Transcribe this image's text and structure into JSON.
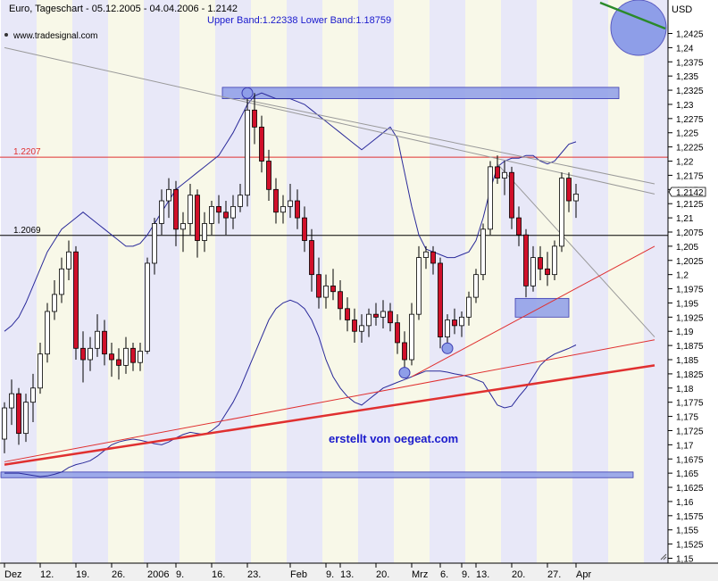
{
  "chart_data": {
    "type": "candlestick",
    "title": "Euro, Tageschart - 05.12.2005 - 04.04.2006 - 1.2142",
    "band_label": "Upper Band:1.22338 Lower Band:1.18759",
    "source": "www.tradesignal.com",
    "currency": "USD",
    "watermark": "erstellt von oegeat.com",
    "last_price": "1.2142",
    "ylim": [
      1.15,
      1.25
    ],
    "yticks": [
      "1,2425",
      "1,24",
      "1,2375",
      "1,235",
      "1,2325",
      "1,23",
      "1,2275",
      "1,225",
      "1,2225",
      "1,22",
      "1,2175",
      "1,215",
      "1,2125",
      "1,21",
      "1,2075",
      "1,205",
      "1,2025",
      "1,2",
      "1,1975",
      "1,195",
      "1,1925",
      "1,19",
      "1,1875",
      "1,185",
      "1,1825",
      "1,18",
      "1,1775",
      "1,175",
      "1,1725",
      "1,17",
      "1,1675",
      "1,165",
      "1,1625",
      "1,16",
      "1,1575",
      "1,155",
      "1,1525",
      "1,15"
    ],
    "ytick_values": [
      1.2425,
      1.24,
      1.2375,
      1.235,
      1.2325,
      1.23,
      1.2275,
      1.225,
      1.2225,
      1.22,
      1.2175,
      1.215,
      1.2125,
      1.21,
      1.2075,
      1.205,
      1.2025,
      1.2,
      1.1975,
      1.195,
      1.1925,
      1.19,
      1.1875,
      1.185,
      1.1825,
      1.18,
      1.1775,
      1.175,
      1.1725,
      1.17,
      1.1675,
      1.165,
      1.1625,
      1.16,
      1.1575,
      1.155,
      1.1525,
      1.15
    ],
    "xticks": [
      {
        "label": "Dez",
        "i": 0
      },
      {
        "label": "12.",
        "i": 5
      },
      {
        "label": "19.",
        "i": 10
      },
      {
        "label": "26.",
        "i": 15
      },
      {
        "label": "2006",
        "i": 20
      },
      {
        "label": "9.",
        "i": 24
      },
      {
        "label": "16.",
        "i": 29
      },
      {
        "label": "23.",
        "i": 34
      },
      {
        "label": "Feb",
        "i": 40
      },
      {
        "label": "9.",
        "i": 45
      },
      {
        "label": "13.",
        "i": 47
      },
      {
        "label": "20.",
        "i": 52
      },
      {
        "label": "Mrz",
        "i": 57
      },
      {
        "label": "6.",
        "i": 61
      },
      {
        "label": "9.",
        "i": 64
      },
      {
        "label": "13.",
        "i": 66
      },
      {
        "label": "20.",
        "i": 71
      },
      {
        "label": "27.",
        "i": 76
      },
      {
        "label": "Apr",
        "i": 80
      }
    ],
    "hlines": [
      {
        "label": "1.2207",
        "value": 1.2207,
        "color": "#e03030"
      },
      {
        "label": "1.2069",
        "value": 1.2069,
        "color": "#000000"
      }
    ],
    "candles": [
      [
        1.171,
        1.1775,
        1.1685,
        1.1765
      ],
      [
        1.1765,
        1.1815,
        1.1735,
        1.179
      ],
      [
        1.179,
        1.18,
        1.17,
        1.172
      ],
      [
        1.172,
        1.179,
        1.1705,
        1.1775
      ],
      [
        1.1775,
        1.1825,
        1.174,
        1.18
      ],
      [
        1.18,
        1.188,
        1.179,
        1.186
      ],
      [
        1.186,
        1.195,
        1.1845,
        1.1935
      ],
      [
        1.1935,
        1.199,
        1.192,
        1.1965
      ],
      [
        1.1965,
        1.203,
        1.195,
        1.201
      ],
      [
        1.201,
        1.206,
        1.199,
        1.204
      ],
      [
        1.204,
        1.205,
        1.185,
        1.187
      ],
      [
        1.187,
        1.19,
        1.181,
        1.185
      ],
      [
        1.185,
        1.189,
        1.183,
        1.187
      ],
      [
        1.187,
        1.193,
        1.1855,
        1.19
      ],
      [
        1.19,
        1.192,
        1.184,
        1.186
      ],
      [
        1.186,
        1.188,
        1.182,
        1.185
      ],
      [
        1.185,
        1.187,
        1.1815,
        1.184
      ],
      [
        1.184,
        1.189,
        1.1825,
        1.187
      ],
      [
        1.187,
        1.188,
        1.183,
        1.1845
      ],
      [
        1.1845,
        1.188,
        1.183,
        1.1865
      ],
      [
        1.1865,
        1.203,
        1.186,
        1.202
      ],
      [
        1.202,
        1.21,
        1.2,
        1.209
      ],
      [
        1.209,
        1.215,
        1.207,
        1.213
      ],
      [
        1.213,
        1.217,
        1.21,
        1.215
      ],
      [
        1.215,
        1.2165,
        1.205,
        1.208
      ],
      [
        1.208,
        1.211,
        1.204,
        1.209
      ],
      [
        1.209,
        1.216,
        1.207,
        1.214
      ],
      [
        1.214,
        1.215,
        1.203,
        1.206
      ],
      [
        1.206,
        1.211,
        1.204,
        1.209
      ],
      [
        1.209,
        1.213,
        1.207,
        1.212
      ],
      [
        1.212,
        1.214,
        1.209,
        1.211
      ],
      [
        1.211,
        1.213,
        1.207,
        1.21
      ],
      [
        1.21,
        1.214,
        1.208,
        1.212
      ],
      [
        1.212,
        1.216,
        1.211,
        1.214
      ],
      [
        1.214,
        1.231,
        1.212,
        1.229
      ],
      [
        1.229,
        1.232,
        1.223,
        1.226
      ],
      [
        1.226,
        1.228,
        1.218,
        1.22
      ],
      [
        1.22,
        1.222,
        1.213,
        1.215
      ],
      [
        1.215,
        1.217,
        1.209,
        1.211
      ],
      [
        1.211,
        1.214,
        1.209,
        1.212
      ],
      [
        1.212,
        1.216,
        1.21,
        1.213
      ],
      [
        1.213,
        1.215,
        1.208,
        1.21
      ],
      [
        1.21,
        1.212,
        1.204,
        1.206
      ],
      [
        1.206,
        1.208,
        1.197,
        1.2
      ],
      [
        1.2,
        1.203,
        1.194,
        1.196
      ],
      [
        1.196,
        1.2,
        1.194,
        1.198
      ],
      [
        1.198,
        1.201,
        1.1955,
        1.197
      ],
      [
        1.197,
        1.199,
        1.192,
        1.194
      ],
      [
        1.194,
        1.196,
        1.19,
        1.192
      ],
      [
        1.192,
        1.194,
        1.188,
        1.19
      ],
      [
        1.19,
        1.193,
        1.188,
        1.191
      ],
      [
        1.191,
        1.194,
        1.189,
        1.193
      ],
      [
        1.193,
        1.195,
        1.191,
        1.1925
      ],
      [
        1.1925,
        1.1955,
        1.1905,
        1.1935
      ],
      [
        1.1935,
        1.195,
        1.19,
        1.1915
      ],
      [
        1.1915,
        1.193,
        1.186,
        1.188
      ],
      [
        1.188,
        1.19,
        1.1825,
        1.185
      ],
      [
        1.185,
        1.195,
        1.184,
        1.193
      ],
      [
        1.193,
        1.205,
        1.192,
        1.203
      ],
      [
        1.203,
        1.205,
        1.201,
        1.204
      ],
      [
        1.204,
        1.205,
        1.2,
        1.202
      ],
      [
        1.202,
        1.203,
        1.187,
        1.189
      ],
      [
        1.189,
        1.193,
        1.187,
        1.192
      ],
      [
        1.192,
        1.194,
        1.1895,
        1.191
      ],
      [
        1.191,
        1.1935,
        1.189,
        1.1925
      ],
      [
        1.1925,
        1.197,
        1.191,
        1.196
      ],
      [
        1.196,
        1.201,
        1.195,
        1.2
      ],
      [
        1.2,
        1.209,
        1.199,
        1.208
      ],
      [
        1.208,
        1.22,
        1.207,
        1.219
      ],
      [
        1.219,
        1.221,
        1.216,
        1.217
      ],
      [
        1.217,
        1.22,
        1.214,
        1.218
      ],
      [
        1.218,
        1.219,
        1.208,
        1.21
      ],
      [
        1.21,
        1.212,
        1.205,
        1.207
      ],
      [
        1.207,
        1.208,
        1.196,
        1.198
      ],
      [
        1.198,
        1.205,
        1.197,
        1.203
      ],
      [
        1.203,
        1.205,
        1.199,
        1.201
      ],
      [
        1.201,
        1.204,
        1.198,
        1.2
      ],
      [
        1.2,
        1.206,
        1.199,
        1.205
      ],
      [
        1.205,
        1.218,
        1.204,
        1.217
      ],
      [
        1.217,
        1.218,
        1.211,
        1.213
      ],
      [
        1.213,
        1.216,
        1.21,
        1.2142
      ]
    ],
    "upper_band": [
      1.19,
      1.191,
      1.1925,
      1.195,
      1.198,
      1.201,
      1.204,
      1.206,
      1.208,
      1.209,
      1.21,
      1.211,
      1.21,
      1.209,
      1.208,
      1.207,
      1.206,
      1.205,
      1.205,
      1.2055,
      1.207,
      1.209,
      1.211,
      1.213,
      1.215,
      1.216,
      1.217,
      1.218,
      1.219,
      1.22,
      1.221,
      1.223,
      1.225,
      1.2275,
      1.23,
      1.2315,
      1.232,
      1.2315,
      1.231,
      1.231,
      1.231,
      1.2305,
      1.23,
      1.229,
      1.228,
      1.227,
      1.226,
      1.225,
      1.224,
      1.223,
      1.222,
      1.223,
      1.224,
      1.225,
      1.226,
      1.224,
      1.218,
      1.212,
      1.207,
      1.2045,
      1.204,
      1.2035,
      1.203,
      1.203,
      1.2035,
      1.204,
      1.206,
      1.21,
      1.215,
      1.219,
      1.22,
      1.2205,
      1.2205,
      1.221,
      1.221,
      1.22,
      1.2195,
      1.22,
      1.2215,
      1.223,
      1.2234
    ],
    "lower_band": [
      1.165,
      1.165,
      1.165,
      1.1648,
      1.1646,
      1.1644,
      1.1645,
      1.1648,
      1.1652,
      1.166,
      1.1665,
      1.1668,
      1.1672,
      1.168,
      1.169,
      1.17,
      1.1705,
      1.1708,
      1.171,
      1.1708,
      1.1705,
      1.1702,
      1.17,
      1.1705,
      1.1712,
      1.1718,
      1.1722,
      1.172,
      1.1718,
      1.1725,
      1.1735,
      1.1755,
      1.1775,
      1.18,
      1.183,
      1.186,
      1.189,
      1.192,
      1.194,
      1.195,
      1.1955,
      1.195,
      1.194,
      1.192,
      1.189,
      1.185,
      1.182,
      1.18,
      1.1785,
      1.1775,
      1.177,
      1.178,
      1.179,
      1.18,
      1.1805,
      1.181,
      1.1815,
      1.182,
      1.1825,
      1.183,
      1.183,
      1.183,
      1.1828,
      1.1825,
      1.1823,
      1.182,
      1.1815,
      1.181,
      1.179,
      1.177,
      1.1765,
      1.1768,
      1.1785,
      1.18,
      1.182,
      1.184,
      1.1852,
      1.186,
      1.1865,
      1.187,
      1.1876
    ],
    "trendlines": [
      {
        "p1": [
          0,
          1.24
        ],
        "p2": [
          91,
          1.2142
        ],
        "color": "#999999",
        "w": 1
      },
      {
        "p1": [
          33,
          1.231
        ],
        "p2": [
          91,
          1.216
        ],
        "color": "#999999",
        "w": 1
      },
      {
        "p1": [
          69,
          1.2195
        ],
        "p2": [
          91,
          1.189
        ],
        "color": "#999999",
        "w": 1
      },
      {
        "p1": [
          0,
          1.167
        ],
        "p2": [
          91,
          1.1885
        ],
        "color": "#e03030",
        "w": 1
      },
      {
        "p1": [
          0,
          1.1665
        ],
        "p2": [
          91,
          1.184
        ],
        "color": "#e03030",
        "w": 2.5
      },
      {
        "p1": [
          57,
          1.182
        ],
        "p2": [
          91,
          1.205
        ],
        "color": "#e03030",
        "w": 1
      }
    ],
    "boxes": [
      {
        "i1": 31,
        "i2": 86,
        "y1": 1.231,
        "y2": 1.233
      },
      {
        "i1": 72,
        "i2": 79,
        "y1": 1.1925,
        "y2": 1.1958
      },
      {
        "i1": 0,
        "i2": 88,
        "y1": 1.1642,
        "y2": 1.1652
      }
    ],
    "circles": [
      {
        "i": 34,
        "v": 1.232
      },
      {
        "i": 56,
        "v": 1.1827
      },
      {
        "i": 62,
        "v": 1.187
      }
    ]
  }
}
